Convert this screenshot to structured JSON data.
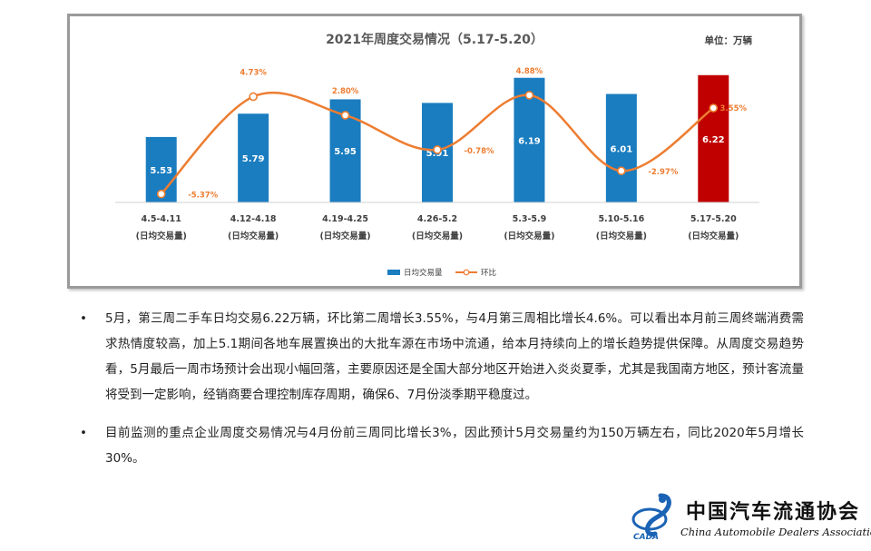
{
  "chart_data": {
    "type": "bar+line",
    "title": "2021年周度交易情况（5.17-5.20）",
    "unit_label": "单位：万辆",
    "categories": [
      {
        "range": "4.5-4.11",
        "sub": "(日均交易量)"
      },
      {
        "range": "4.12-4.18",
        "sub": "(日均交易量)"
      },
      {
        "range": "4.19-4.25",
        "sub": "(日均交易量)"
      },
      {
        "range": "4.26-5.2",
        "sub": "(日均交易量)"
      },
      {
        "range": "5.3-5.9",
        "sub": "(日均交易量)"
      },
      {
        "range": "5.10-5.16",
        "sub": "(日均交易量)"
      },
      {
        "range": "5.17-5.20",
        "sub": "(日均交易量)"
      }
    ],
    "series": [
      {
        "name": "日均交易量",
        "type": "bar",
        "values": [
          5.53,
          5.79,
          5.95,
          5.91,
          6.19,
          6.01,
          6.22
        ],
        "labels": [
          "5.53",
          "5.79",
          "5.95",
          "5.91",
          "6.19",
          "6.01",
          "6.22"
        ],
        "highlight_index": 6
      },
      {
        "name": "环比",
        "type": "line",
        "values": [
          -5.37,
          4.73,
          2.8,
          -0.78,
          4.88,
          -2.97,
          3.55
        ],
        "labels": [
          "-5.37%",
          "4.73%",
          "2.80%",
          "-0.78%",
          "4.88%",
          "-2.97%",
          "3.55%"
        ]
      }
    ],
    "bar_axis_range": [
      4.8,
      6.4
    ],
    "line_axis_range": [
      -7,
      6
    ],
    "legend_position": "bottom-center",
    "colors": {
      "bar": "#1a7dc0",
      "bar_highlight": "#c00000",
      "line": "#ed7d31",
      "marker_fill": "#ffffff",
      "title": "#595959",
      "axis_text": "#404040"
    }
  },
  "paragraphs": [
    {
      "bullet": "•",
      "text": "5月，第三周二手车日均交易6.22万辆，环比第二周增长3.55%，与4月第三周相比增长4.6%。可以看出本月前三周终端消费需求热情度较高，加上5.1期间各地车展置换出的大批车源在市场中流通，给本月持续向上的增长趋势提供保障。从周度交易趋势看，5月最后一周市场预计会出现小幅回落，主要原因还是全国大部分地区开始进入炎炎夏季，尤其是我国南方地区，预计客流量将受到一定影响，经销商要合理控制库存周期，确保6、7月份淡季期平稳度过。"
    },
    {
      "bullet": "•",
      "text": "目前监测的重点企业周度交易情况与4月份前三周同比增长3%，因此预计5月交易量约为150万辆左右，同比2020年5月增长30%。"
    }
  ],
  "logo": {
    "abbr": "CADA",
    "name_cn": "中国汽车流通协会",
    "name_en": "China Automobile Dealers Association"
  }
}
